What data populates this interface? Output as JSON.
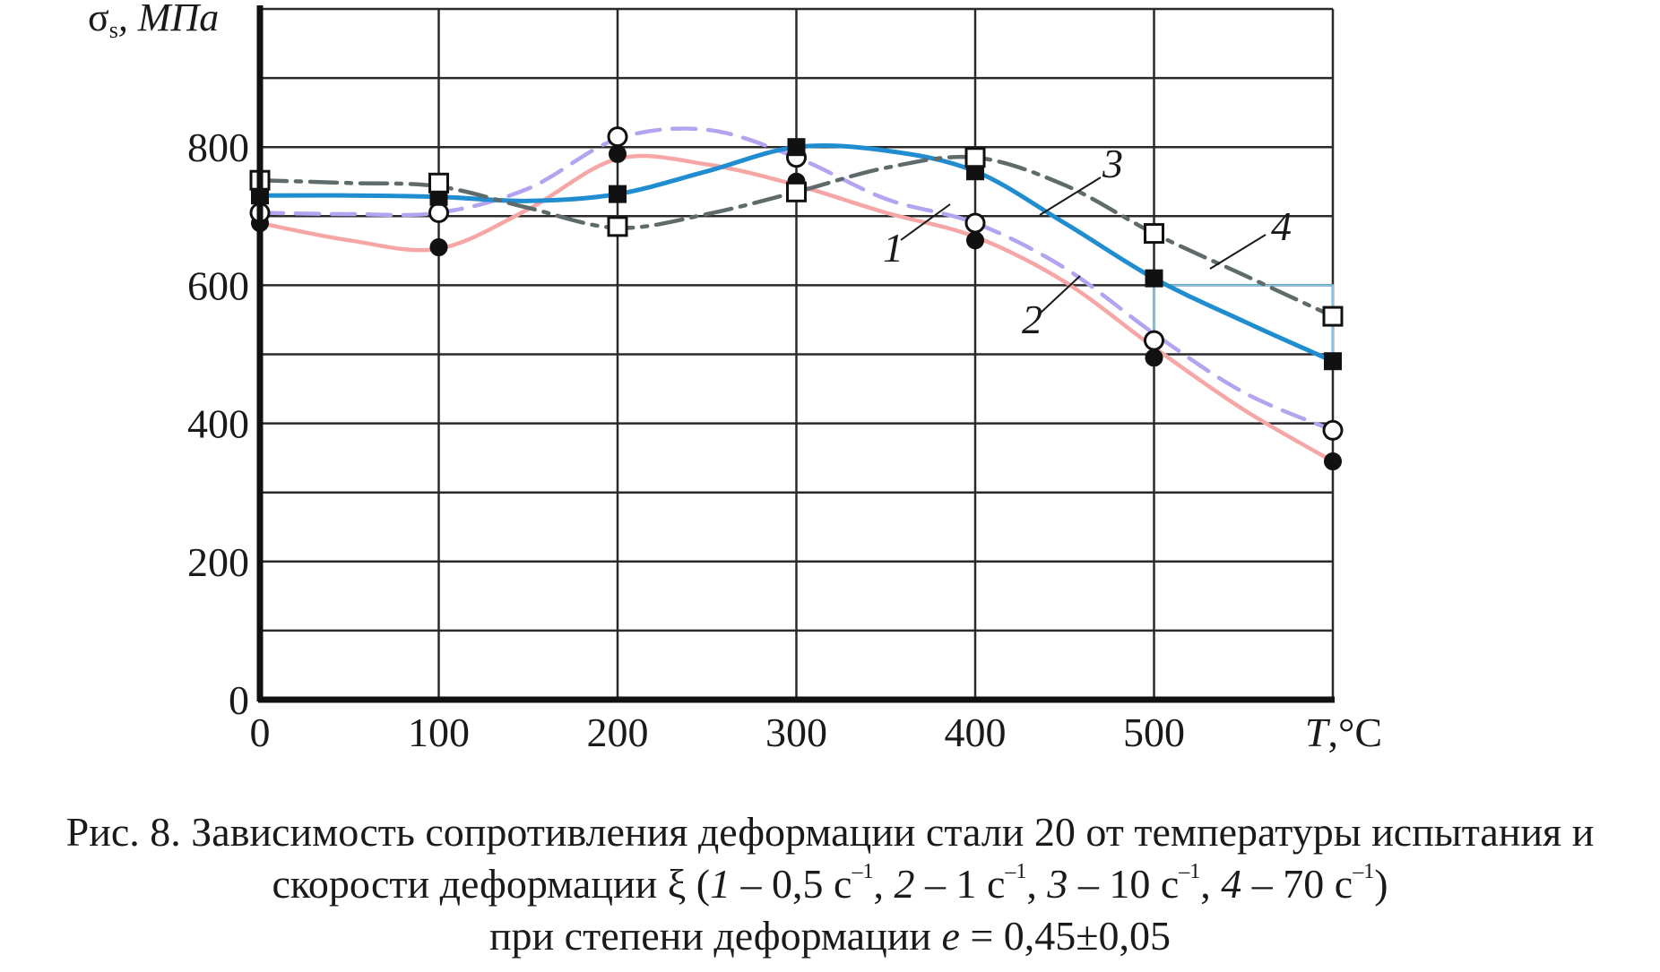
{
  "chart_data": {
    "type": "line",
    "ylabel_main": "σ",
    "ylabel_sub": "s",
    "ylabel_unit": ", МПа",
    "xlabel_var": "T",
    "xlabel_unit": ",°C",
    "x_ticks": [
      "0",
      "100",
      "200",
      "300",
      "400",
      "500"
    ],
    "y_ticks": [
      "0",
      "200",
      "400",
      "600",
      "800"
    ],
    "xlim": [
      0,
      600
    ],
    "ylim": [
      0,
      1000
    ],
    "grid": true,
    "series": [
      {
        "name": "1",
        "color": "#f7a6a6",
        "marker": "filled-circle",
        "dash": "solid",
        "x": [
          0,
          100,
          200,
          300,
          400,
          500,
          600
        ],
        "y": [
          690,
          655,
          790,
          750,
          665,
          495,
          345
        ],
        "curve_x": [
          0,
          50,
          100,
          150,
          200,
          250,
          300,
          350,
          400,
          450,
          500,
          550,
          600
        ],
        "curve_y": [
          690,
          665,
          653,
          710,
          783,
          775,
          745,
          705,
          670,
          605,
          510,
          420,
          345
        ]
      },
      {
        "name": "2",
        "color": "#b3a3f0",
        "marker": "open-circle",
        "dash": "dashed",
        "x": [
          0,
          100,
          200,
          300,
          400,
          500,
          600
        ],
        "y": [
          705,
          705,
          815,
          785,
          690,
          520,
          390
        ],
        "curve_x": [
          0,
          50,
          100,
          150,
          200,
          250,
          300,
          350,
          400,
          450,
          500,
          550,
          600
        ],
        "curve_y": [
          705,
          703,
          705,
          740,
          812,
          825,
          785,
          725,
          690,
          625,
          530,
          445,
          390
        ]
      },
      {
        "name": "3",
        "color": "#1f8dcf",
        "marker": "filled-square",
        "dash": "solid",
        "x": [
          0,
          100,
          200,
          300,
          400,
          500,
          600
        ],
        "y": [
          730,
          728,
          732,
          800,
          765,
          610,
          490
        ],
        "curve_x": [
          0,
          50,
          100,
          150,
          200,
          250,
          300,
          350,
          400,
          450,
          500,
          550,
          600
        ],
        "curve_y": [
          730,
          730,
          728,
          722,
          732,
          765,
          800,
          795,
          765,
          690,
          610,
          548,
          490
        ]
      },
      {
        "name": "4",
        "color": "#5f6b6b",
        "marker": "open-square",
        "dash": "dashdot",
        "x": [
          0,
          100,
          200,
          300,
          400,
          500,
          600
        ],
        "y": [
          752,
          748,
          685,
          735,
          785,
          675,
          555
        ],
        "curve_x": [
          0,
          50,
          100,
          150,
          200,
          250,
          300,
          350,
          400,
          450,
          500,
          550,
          600
        ],
        "curve_y": [
          752,
          748,
          743,
          712,
          683,
          703,
          735,
          770,
          785,
          745,
          675,
          615,
          555
        ]
      }
    ],
    "annotations": [
      "1",
      "2",
      "3",
      "4"
    ]
  },
  "caption": {
    "line1": "Рис. 8. Зависимость сопротивления деформации стали 20 от температуры испытания и",
    "l2_a": "скорости деформации ξ (",
    "l2_n1": "1",
    "l2_t1": " – 0,5 с",
    "l2_sup1": "–1",
    "l2_sep1": ", ",
    "l2_n2": "2",
    "l2_t2": " – 1 с",
    "l2_sup2": "–1",
    "l2_sep2": ", ",
    "l2_n3": "3",
    "l2_t3": " – 10 с",
    "l2_sup3": "–1",
    "l2_sep3": ", ",
    "l2_n4": "4",
    "l2_t4": " – 70 с",
    "l2_sup4": "–1",
    "l2_end": ")",
    "l3_a": "при степени деформации ",
    "l3_var": "e",
    "l3_b": " = 0,45±0,05"
  }
}
